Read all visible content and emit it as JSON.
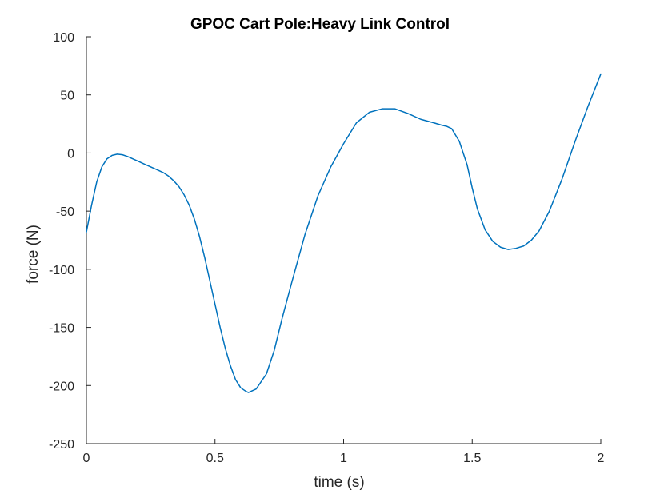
{
  "chart_data": {
    "type": "line",
    "title": "GPOC Cart Pole:Heavy Link Control",
    "xlabel": "time (s)",
    "ylabel": "force (N)",
    "xlim": [
      0,
      2
    ],
    "ylim": [
      -250,
      100
    ],
    "grid": false,
    "legend": "none",
    "x_ticks": [
      "0",
      "0.5",
      "1",
      "1.5",
      "2"
    ],
    "y_ticks": [
      "100",
      "50",
      "0",
      "-50",
      "-100",
      "-150",
      "-200",
      "-250"
    ],
    "series": [
      {
        "color": "#0072BD",
        "x": [
          0,
          0.02,
          0.04,
          0.06,
          0.08,
          0.1,
          0.12,
          0.14,
          0.16,
          0.18,
          0.2,
          0.22,
          0.24,
          0.26,
          0.28,
          0.3,
          0.32,
          0.34,
          0.36,
          0.38,
          0.4,
          0.42,
          0.44,
          0.46,
          0.48,
          0.5,
          0.52,
          0.54,
          0.56,
          0.58,
          0.6,
          0.62,
          0.63,
          0.66,
          0.7,
          0.73,
          0.76,
          0.8,
          0.85,
          0.9,
          0.95,
          1.0,
          1.05,
          1.1,
          1.15,
          1.2,
          1.25,
          1.3,
          1.35,
          1.38,
          1.4,
          1.42,
          1.45,
          1.48,
          1.5,
          1.52,
          1.55,
          1.58,
          1.61,
          1.64,
          1.67,
          1.7,
          1.73,
          1.76,
          1.8,
          1.85,
          1.9,
          1.95,
          2.0
        ],
        "y": [
          -68,
          -45,
          -25,
          -12,
          -5,
          -2,
          -1,
          -1.5,
          -3,
          -5,
          -7,
          -9,
          -11,
          -13,
          -15,
          -17,
          -20,
          -24,
          -29,
          -36,
          -45,
          -57,
          -72,
          -90,
          -110,
          -130,
          -150,
          -168,
          -183,
          -195,
          -202,
          -205,
          -206,
          -203,
          -190,
          -170,
          -143,
          -110,
          -70,
          -37,
          -12,
          8,
          26,
          35,
          38,
          38,
          34,
          29,
          26,
          24,
          23,
          21,
          10,
          -10,
          -30,
          -48,
          -66,
          -76,
          -81,
          -83,
          -82,
          -80,
          -75,
          -67,
          -50,
          -22,
          10,
          40,
          68
        ]
      }
    ]
  }
}
